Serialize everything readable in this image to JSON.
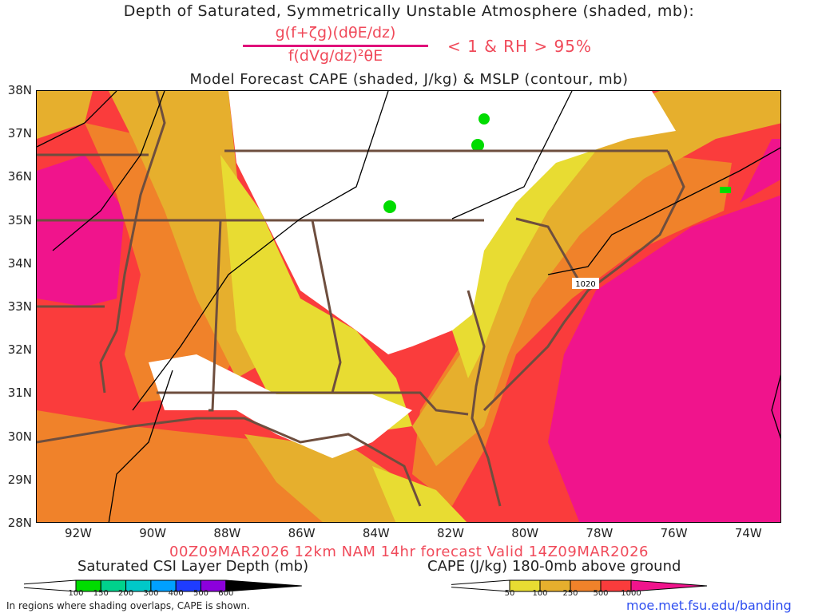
{
  "header": {
    "title": "Depth of Saturated, Symmetrically Unstable Atmosphere (shaded, mb):",
    "numerator": "g(f+ζg)(dθE/dz)",
    "denominator": "f(dVg/dz)²θE",
    "condition": "< 1 & RH > 95%",
    "subtitle": "Model Forecast CAPE (shaded, J/kg) & MSLP (contour, mb)"
  },
  "map": {
    "lat_ticks": [
      "38N",
      "37N",
      "36N",
      "35N",
      "34N",
      "33N",
      "32N",
      "31N",
      "30N",
      "29N",
      "28N"
    ],
    "lon_ticks": [
      "92W",
      "90W",
      "88W",
      "86W",
      "84W",
      "82W",
      "80W",
      "78W",
      "76W",
      "74W"
    ],
    "isobar_label": "1020",
    "colors": {
      "white": "#ffffff",
      "yellow": "#e8dc32",
      "gold": "#e6af2d",
      "orange": "#f0822a",
      "red": "#fa3c3c",
      "magenta": "#f0148c",
      "csi": "#00dc00",
      "border": "#6e4e3e"
    }
  },
  "footer": {
    "valid": "00Z09MAR2026 12km NAM 14hr forecast Valid 14Z09MAR2026",
    "csi_title": "Saturated CSI Layer Depth (mb)",
    "cape_title": "CAPE (J/kg) 180-0mb above ground",
    "note": "In regions where shading overlaps, CAPE is shown.",
    "link": "moe.met.fsu.edu/banding"
  },
  "csi_colorbar": {
    "labels": [
      "100",
      "150",
      "200",
      "300",
      "400",
      "500",
      "600"
    ],
    "colors": [
      "#00dc00",
      "#00d28c",
      "#00c8c8",
      "#00a0ff",
      "#1e3cff",
      "#8c00dc"
    ]
  },
  "cape_colorbar": {
    "labels": [
      "50",
      "100",
      "250",
      "500",
      "1000"
    ],
    "colors": [
      "#e8dc32",
      "#e6af2d",
      "#f0822a",
      "#fa3c3c"
    ],
    "end_color": "#f0148c"
  }
}
